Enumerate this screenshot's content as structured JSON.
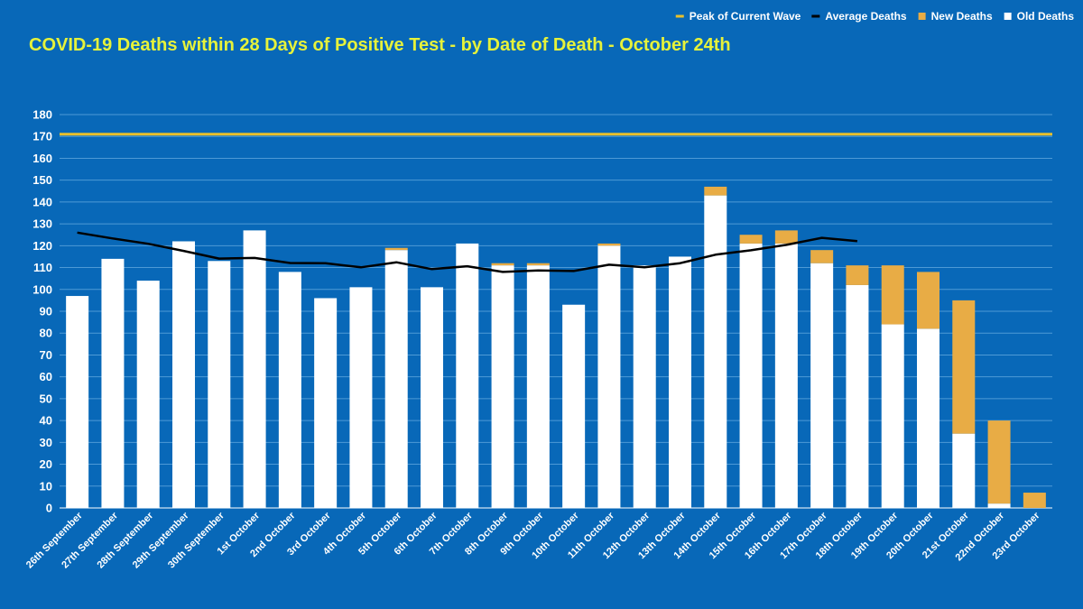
{
  "chart_data": {
    "type": "bar",
    "title": "COVID-19 Deaths within 28 Days of Positive Test - by Date of Death - October 24th",
    "stacked": true,
    "categories": [
      "26th September",
      "27th September",
      "28th September",
      "29th September",
      "30th September",
      "1st October",
      "2nd October",
      "3rd October",
      "4th October",
      "5th October",
      "6th October",
      "7th October",
      "8th October",
      "9th October",
      "10th October",
      "11th October",
      "12th October",
      "13th October",
      "14th October",
      "15th October",
      "16th October",
      "17th October",
      "18th October",
      "19th October",
      "20th October",
      "21st October",
      "22nd October",
      "23rd October"
    ],
    "series": [
      {
        "name": "Old Deaths",
        "color": "#ffffff",
        "values": [
          97,
          114,
          104,
          122,
          113,
          127,
          108,
          96,
          101,
          118,
          101,
          121,
          111,
          111,
          93,
          120,
          111,
          115,
          143,
          121,
          121,
          112,
          102,
          84,
          82,
          34,
          2,
          0
        ]
      },
      {
        "name": "New Deaths",
        "color": "#e8ac45",
        "values": [
          0,
          0,
          0,
          0,
          0,
          0,
          0,
          0,
          0,
          1,
          0,
          0,
          1,
          1,
          0,
          1,
          0,
          0,
          4,
          4,
          6,
          6,
          9,
          27,
          26,
          61,
          38,
          7
        ]
      },
      {
        "name": "Average Deaths",
        "type": "line",
        "color": "#000000",
        "values": [
          126,
          123.3,
          120.9,
          117.6,
          114.1,
          114.4,
          112.1,
          112,
          110.1,
          112.4,
          109.3,
          110.6,
          108,
          108.7,
          108.4,
          111.3,
          110.1,
          112,
          115.9,
          117.9,
          120.4,
          123.6,
          122.1,
          null,
          null,
          null,
          null,
          null
        ]
      },
      {
        "name": "Peak of Current Wave",
        "type": "hline",
        "color": "#e9c02b",
        "value": 171
      }
    ],
    "legend_order": [
      "Peak of Current Wave",
      "Average Deaths",
      "New Deaths",
      "Old Deaths"
    ],
    "legend_position": "top-right",
    "ylim": [
      0,
      180
    ],
    "yticks": [
      0,
      10,
      20,
      30,
      40,
      50,
      60,
      70,
      80,
      90,
      100,
      110,
      120,
      130,
      140,
      150,
      160,
      170,
      180
    ],
    "grid": true,
    "xlabel": "",
    "ylabel": "",
    "colors": {
      "background": "#0868b8",
      "title": "#e6f23a",
      "gridline": "#4e9ad6",
      "text": "#ffffff"
    }
  }
}
